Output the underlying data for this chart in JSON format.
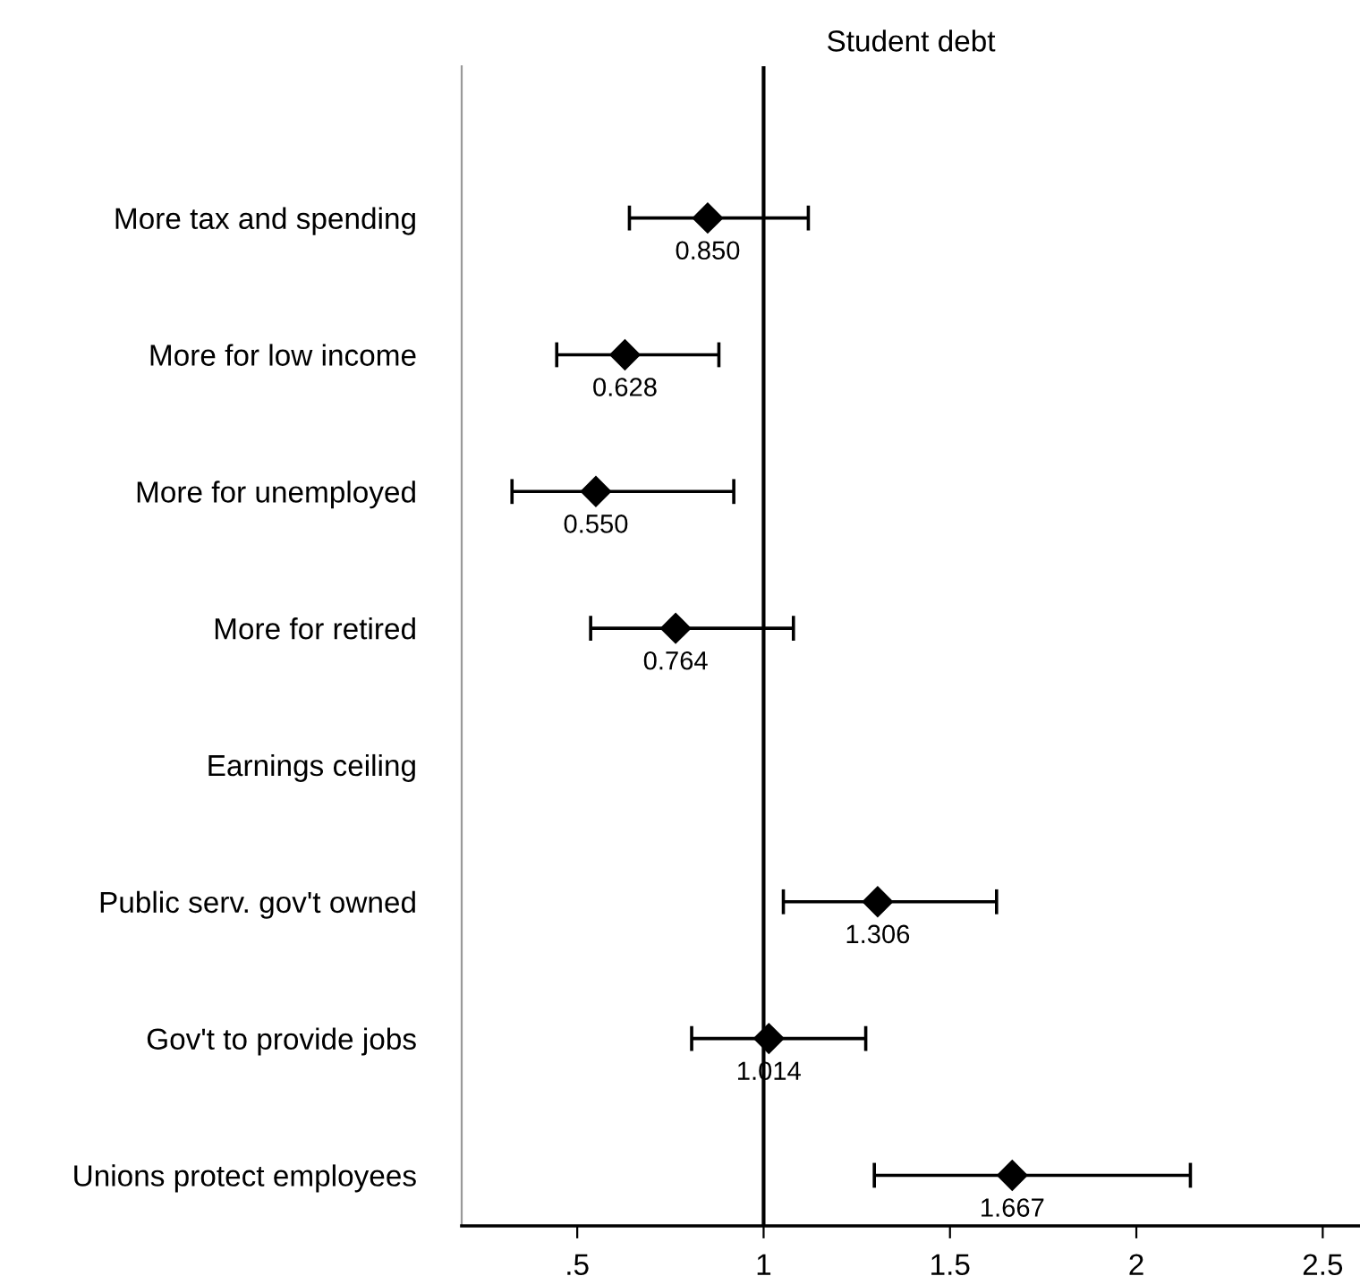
{
  "chart_data": {
    "type": "scatter",
    "orientation": "horizontal",
    "title": "Student debt",
    "categories": [
      "More tax and spending",
      "More for low income",
      "More for unemployed",
      "More for retired",
      "Earnings ceiling",
      "Public serv. gov't owned",
      "Gov't to provide jobs",
      "Unions protect employees"
    ],
    "values": [
      0.85,
      0.628,
      0.55,
      0.764,
      null,
      1.306,
      1.014,
      1.667
    ],
    "errors": [
      [
        0.64,
        1.12
      ],
      [
        0.445,
        0.88
      ],
      [
        0.325,
        0.92
      ],
      [
        0.536,
        1.08
      ],
      null,
      [
        1.053,
        1.625
      ],
      [
        0.807,
        1.274
      ],
      [
        1.297,
        2.145
      ]
    ],
    "value_labels": [
      "0.850",
      "0.628",
      "0.550",
      "0.764",
      null,
      "1.306",
      "1.014",
      "1.667"
    ],
    "color": "#000000",
    "marker": "diamond",
    "xlim": [
      0.19,
      2.6
    ],
    "xticks": [
      {
        "value": 0.5,
        "label": ".5"
      },
      1,
      1.5,
      2,
      2.5
    ],
    "ref_lines": [
      {
        "axis": "x",
        "value": 1,
        "color": "#000000"
      }
    ],
    "grid": false,
    "legend": false
  }
}
